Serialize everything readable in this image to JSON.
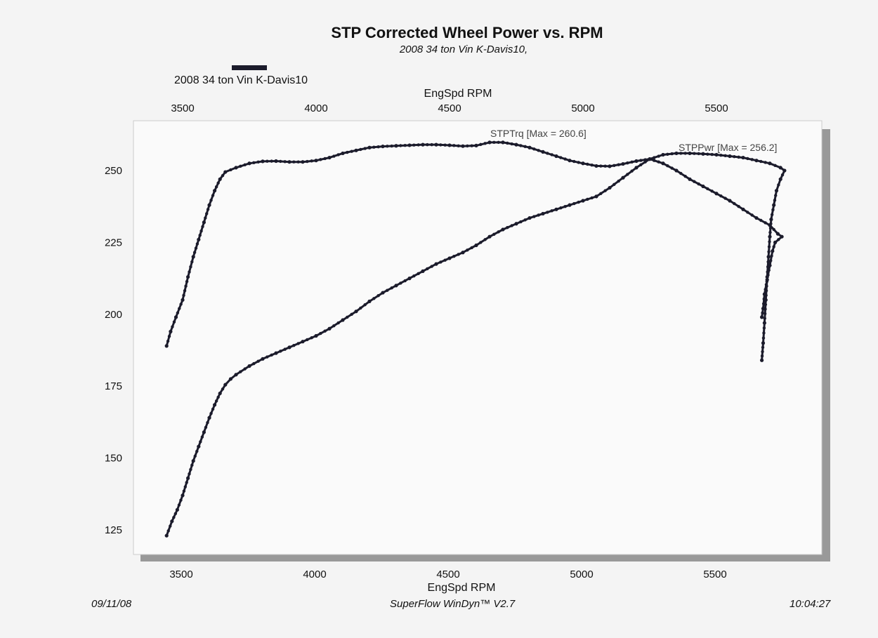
{
  "header": {
    "title": "STP Corrected Wheel Power vs. RPM",
    "subtitle": "2008 34 ton Vin K-Davis10,"
  },
  "legend": {
    "label": "2008 34 ton Vin K-Davis10",
    "color": "#1b1b2b"
  },
  "footer": {
    "date": "09/11/08",
    "software": "SuperFlow WinDyn™ V2.7",
    "time": "10:04:27"
  },
  "chart_data": {
    "type": "line",
    "title": "STP Corrected Wheel Power vs. RPM",
    "subtitle": "2008 34 ton Vin K-Davis10,",
    "xlabel": "EngSpd  RPM",
    "ylabel": "",
    "xlim": [
      3450,
      5850
    ],
    "ylim": [
      120,
      262
    ],
    "x_ticks": [
      "3500",
      "4000",
      "4500",
      "5000",
      "5500"
    ],
    "y_ticks": [
      "125",
      "150",
      "175",
      "200",
      "225",
      "250"
    ],
    "grid": false,
    "legend_position": "top-left",
    "series": [
      {
        "name": "STPTrq",
        "annotation": "STPTrq [Max = 260.6]",
        "marker": "dot",
        "color": "#1b1b2b",
        "points": [
          [
            3440,
            189
          ],
          [
            3455,
            194
          ],
          [
            3475,
            199
          ],
          [
            3500,
            205
          ],
          [
            3520,
            213
          ],
          [
            3540,
            220
          ],
          [
            3560,
            226
          ],
          [
            3580,
            232
          ],
          [
            3600,
            238
          ],
          [
            3620,
            243
          ],
          [
            3640,
            247
          ],
          [
            3660,
            249.5
          ],
          [
            3700,
            251
          ],
          [
            3750,
            252.5
          ],
          [
            3800,
            253.2
          ],
          [
            3850,
            253.3
          ],
          [
            3900,
            253
          ],
          [
            3950,
            253
          ],
          [
            4000,
            253.5
          ],
          [
            4050,
            254.5
          ],
          [
            4100,
            256
          ],
          [
            4150,
            257
          ],
          [
            4200,
            258
          ],
          [
            4250,
            258.4
          ],
          [
            4300,
            258.6
          ],
          [
            4350,
            258.8
          ],
          [
            4400,
            259
          ],
          [
            4450,
            259
          ],
          [
            4500,
            258.8
          ],
          [
            4550,
            258.5
          ],
          [
            4600,
            258.7
          ],
          [
            4650,
            259.8
          ],
          [
            4700,
            259.8
          ],
          [
            4750,
            259
          ],
          [
            4800,
            258
          ],
          [
            4850,
            256.5
          ],
          [
            4900,
            255
          ],
          [
            4950,
            253.5
          ],
          [
            5000,
            252.5
          ],
          [
            5050,
            251.6
          ],
          [
            5100,
            251.5
          ],
          [
            5150,
            252.3
          ],
          [
            5200,
            253.3
          ],
          [
            5250,
            254
          ],
          [
            5300,
            252.5
          ],
          [
            5350,
            250
          ],
          [
            5400,
            247
          ],
          [
            5450,
            244.5
          ],
          [
            5500,
            242
          ],
          [
            5550,
            239.5
          ],
          [
            5600,
            236.5
          ],
          [
            5650,
            233.5
          ],
          [
            5700,
            231
          ],
          [
            5730,
            228
          ],
          [
            5745,
            227
          ],
          [
            5720,
            225
          ],
          [
            5710,
            222
          ],
          [
            5700,
            217
          ],
          [
            5690,
            212
          ],
          [
            5680,
            207
          ],
          [
            5675,
            202
          ],
          [
            5670,
            199
          ]
        ]
      },
      {
        "name": "STPPwr",
        "annotation": "STPPwr [Max = 256.2]",
        "marker": "dot",
        "color": "#1b1b2b",
        "points": [
          [
            3440,
            123
          ],
          [
            3460,
            128
          ],
          [
            3480,
            132
          ],
          [
            3500,
            137
          ],
          [
            3520,
            143
          ],
          [
            3540,
            149
          ],
          [
            3560,
            154
          ],
          [
            3580,
            159
          ],
          [
            3600,
            164
          ],
          [
            3620,
            168.5
          ],
          [
            3640,
            172.5
          ],
          [
            3660,
            175.5
          ],
          [
            3680,
            177.5
          ],
          [
            3700,
            179
          ],
          [
            3750,
            182
          ],
          [
            3800,
            184.5
          ],
          [
            3850,
            186.5
          ],
          [
            3900,
            188.5
          ],
          [
            3950,
            190.5
          ],
          [
            4000,
            192.5
          ],
          [
            4050,
            195
          ],
          [
            4100,
            198
          ],
          [
            4150,
            201
          ],
          [
            4200,
            204.5
          ],
          [
            4250,
            207.5
          ],
          [
            4300,
            210
          ],
          [
            4350,
            212.5
          ],
          [
            4400,
            215
          ],
          [
            4450,
            217.5
          ],
          [
            4500,
            219.5
          ],
          [
            4550,
            221.5
          ],
          [
            4600,
            224
          ],
          [
            4650,
            227
          ],
          [
            4700,
            229.5
          ],
          [
            4750,
            231.5
          ],
          [
            4800,
            233.5
          ],
          [
            4850,
            235
          ],
          [
            4900,
            236.5
          ],
          [
            4950,
            238
          ],
          [
            5000,
            239.5
          ],
          [
            5050,
            241
          ],
          [
            5100,
            244
          ],
          [
            5150,
            247.5
          ],
          [
            5200,
            251
          ],
          [
            5250,
            254
          ],
          [
            5300,
            255.5
          ],
          [
            5350,
            256
          ],
          [
            5400,
            256
          ],
          [
            5450,
            255.8
          ],
          [
            5500,
            255.5
          ],
          [
            5550,
            255
          ],
          [
            5600,
            254.5
          ],
          [
            5650,
            253.5
          ],
          [
            5700,
            252.5
          ],
          [
            5740,
            251
          ],
          [
            5755,
            250
          ],
          [
            5740,
            247
          ],
          [
            5725,
            243
          ],
          [
            5715,
            238
          ],
          [
            5705,
            233
          ],
          [
            5700,
            227
          ],
          [
            5695,
            220
          ],
          [
            5690,
            213
          ],
          [
            5685,
            205
          ],
          [
            5680,
            197
          ],
          [
            5675,
            190
          ],
          [
            5670,
            184
          ]
        ]
      }
    ]
  }
}
